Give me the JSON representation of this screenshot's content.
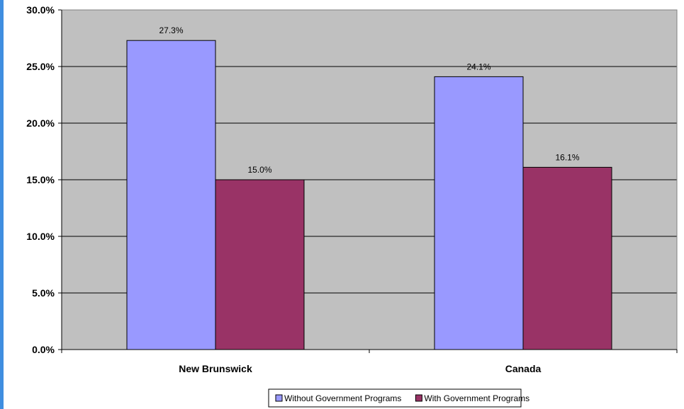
{
  "chart_data": {
    "type": "bar",
    "categories": [
      "New Brunswick",
      "Canada"
    ],
    "series": [
      {
        "name": "Without Government Programs",
        "values": [
          27.3,
          24.1
        ],
        "color": "#9999ff"
      },
      {
        "name": "With Government Programs",
        "values": [
          15.0,
          16.1
        ],
        "color": "#993366"
      }
    ],
    "data_labels": [
      [
        "27.3%",
        "24.1%"
      ],
      [
        "15.0%",
        "16.1%"
      ]
    ],
    "ylim": [
      0,
      30
    ],
    "yticks": [
      0,
      5,
      10,
      15,
      20,
      25,
      30
    ],
    "ytick_labels": [
      "0.0%",
      "5.0%",
      "10.0%",
      "15.0%",
      "20.0%",
      "25.0%",
      "30.0%"
    ],
    "grid": true,
    "legend_position": "bottom",
    "plot_background": "#c0c0c0",
    "title": "",
    "xlabel": "",
    "ylabel": ""
  }
}
